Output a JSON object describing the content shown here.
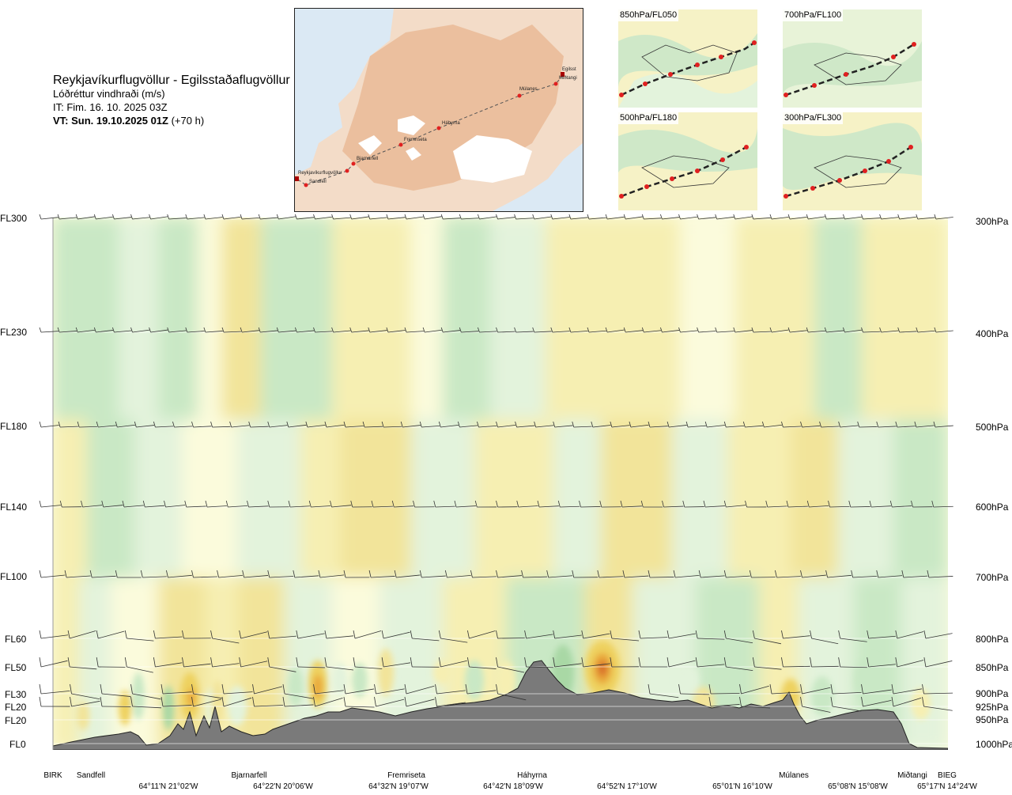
{
  "header": {
    "route": "Reykjavíkurflugvöllur - Egilsstaðaflugvöllur",
    "parameter": "Lóðréttur vindhraði (m/s)",
    "issue_time": "IT: Fim. 16. 10. 2025 03Z",
    "valid_time_bold": "VT: Sun. 19.10.2025 01Z",
    "valid_time_offset": "(+70 h)"
  },
  "route_map": {
    "waypoints": [
      "Reykjavíkurflugvöllur",
      "Sandfell",
      "Bjarnarfell",
      "Fremriseta",
      "Háhyrna",
      "Múlanes",
      "Miðtangi",
      "Egilsst"
    ]
  },
  "mini_maps": [
    {
      "label": "850hPa/FL050"
    },
    {
      "label": "700hPa/FL100"
    },
    {
      "label": "500hPa/FL180"
    },
    {
      "label": "300hPa/FL300"
    }
  ],
  "chart_data": {
    "type": "heatmap",
    "quantity": "vertical wind speed (m/s)",
    "levels": [
      {
        "fl": "FL300",
        "hpa": "300hPa"
      },
      {
        "fl": "FL230",
        "hpa": "400hPa"
      },
      {
        "fl": "FL180",
        "hpa": "500hPa"
      },
      {
        "fl": "FL140",
        "hpa": "600hPa"
      },
      {
        "fl": "FL100",
        "hpa": "700hPa"
      },
      {
        "fl": "FL60",
        "hpa": "800hPa"
      },
      {
        "fl": "FL50",
        "hpa": "850hPa"
      },
      {
        "fl": "FL30",
        "hpa": "900hPa"
      },
      {
        "fl": "FL20",
        "hpa": "925hPa"
      },
      {
        "fl": "FL20",
        "hpa": "950hPa"
      },
      {
        "fl": "FL0",
        "hpa": "1000hPa"
      }
    ],
    "waypoints": [
      "BIRK",
      "Sandfell",
      "Bjarnarfell",
      "Fremriseta",
      "Háhyrna",
      "Múlanes",
      "Miðtangi",
      "BIEG"
    ],
    "coordinates": [
      "64°11'N 21°02'W",
      "64°22'N 20°06'W",
      "64°32'N 19°07'W",
      "64°42'N 18°09'W",
      "64°52'N 17°10'W",
      "65°01'N 16°10'W",
      "65°08'N 15°08'W",
      "65°17'N 14°24'W"
    ],
    "colors": {
      "strong_down": "#a9d8a5",
      "down": "#c9e8c5",
      "weak_down": "#e3f3dc",
      "weak": "#fbfbdc",
      "weak_up": "#f6efb2",
      "up": "#f2e49a",
      "strong_up": "#eed15e",
      "stronger_up": "#e9a83a",
      "max_up": "#d9702a",
      "terrain": "#7a7a7a"
    }
  }
}
